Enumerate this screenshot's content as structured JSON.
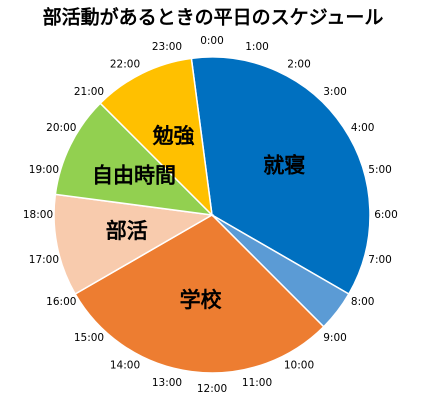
{
  "chart_data": {
    "type": "pie",
    "title": "部活動があるときの平日のスケジュール",
    "categories": [
      "就寝",
      null,
      "学校",
      "部活",
      "自由時間",
      "勉強"
    ],
    "values": [
      8.5,
      1,
      7,
      2.5,
      2.5,
      2.5
    ],
    "colors": [
      "#0070c0",
      "#5b9bd5",
      "#ed7d31",
      "#f8cbad",
      "#92d050",
      "#ffc000"
    ],
    "clock_labels": [
      "0:00",
      "1:00",
      "2:00",
      "3:00",
      "4:00",
      "5:00",
      "6:00",
      "7:00",
      "8:00",
      "9:00",
      "10:00",
      "11:00",
      "12:00",
      "13:00",
      "14:00",
      "15:00",
      "16:00",
      "17:00",
      "18:00",
      "19:00",
      "20:00",
      "21:00",
      "22:00",
      "23:00"
    ]
  }
}
